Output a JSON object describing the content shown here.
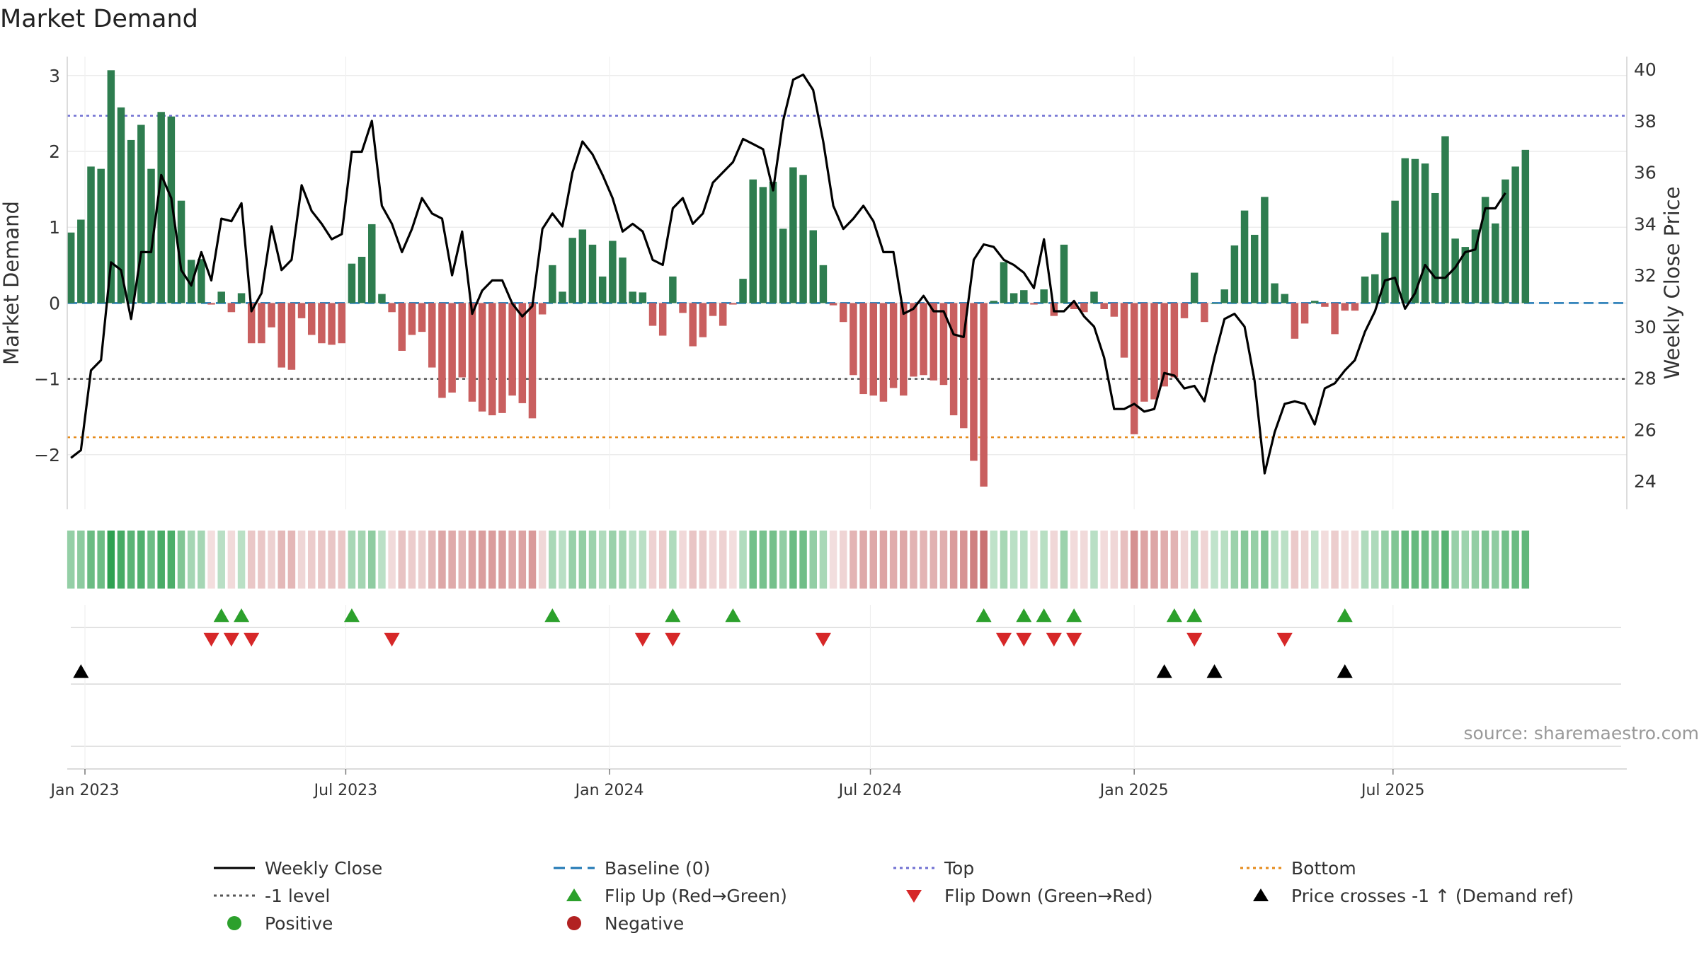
{
  "chart_data": {
    "type": "bar+line",
    "title": "Market Demand",
    "ylabel_left": "Market Demand",
    "ylabel_right": "Weekly Close Price",
    "ylim_left": [
      -2.72,
      3.25
    ],
    "ylim_right": [
      22.9,
      40.5
    ],
    "yticks_left": [
      -2,
      -1,
      0,
      1,
      2,
      3
    ],
    "yticks_left_labels": [
      "−2",
      "−1",
      "0",
      "1",
      "2",
      "3"
    ],
    "yticks_right": [
      24,
      26,
      28,
      30,
      32,
      34,
      36,
      38,
      40
    ],
    "x_start_week_offset": -1.4,
    "week_count": 142,
    "x_ticks": [
      {
        "label": "Jan 2023",
        "week": 0
      },
      {
        "label": "Jul 2023",
        "week": 26
      },
      {
        "label": "Jan 2024",
        "week": 52.3
      },
      {
        "label": "Jul 2024",
        "week": 78.3
      },
      {
        "label": "Jan 2025",
        "week": 104.6
      },
      {
        "label": "Jul 2025",
        "week": 130.4
      }
    ],
    "reference_lines": {
      "baseline": 0,
      "top": 2.47,
      "minus_one": -1,
      "bottom": -1.77
    },
    "demand": [
      0.93,
      1.1,
      1.8,
      1.77,
      3.07,
      2.58,
      2.15,
      2.35,
      1.77,
      2.52,
      2.46,
      1.35,
      0.57,
      0.58,
      -0.02,
      0.15,
      -0.12,
      0.13,
      -0.53,
      -0.53,
      -0.32,
      -0.85,
      -0.88,
      -0.2,
      -0.42,
      -0.53,
      -0.55,
      -0.53,
      0.52,
      0.61,
      1.04,
      0.12,
      -0.12,
      -0.63,
      -0.42,
      -0.38,
      -0.85,
      -1.25,
      -1.18,
      -0.98,
      -1.3,
      -1.43,
      -1.48,
      -1.45,
      -1.22,
      -1.32,
      -1.52,
      -0.15,
      0.5,
      0.15,
      0.86,
      0.97,
      0.77,
      0.35,
      0.82,
      0.6,
      0.15,
      0.14,
      -0.3,
      -0.43,
      0.35,
      -0.13,
      -0.57,
      -0.45,
      -0.17,
      -0.3,
      -0.02,
      0.32,
      1.63,
      1.53,
      1.6,
      0.98,
      1.79,
      1.69,
      0.96,
      0.5,
      -0.03,
      -0.25,
      -0.95,
      -1.2,
      -1.22,
      -1.3,
      -1.12,
      -1.22,
      -0.97,
      -0.95,
      -1.02,
      -1.08,
      -1.48,
      -1.65,
      -2.08,
      -2.42,
      0.03,
      0.54,
      0.13,
      0.17,
      -0.02,
      0.18,
      -0.17,
      0.77,
      -0.08,
      -0.12,
      0.15,
      -0.08,
      -0.18,
      -0.72,
      -1.73,
      -1.3,
      -1.27,
      -1.1,
      -0.98,
      -0.2,
      0.4,
      -0.25,
      0.0,
      0.18,
      0.76,
      1.22,
      0.9,
      1.4,
      0.26,
      0.12,
      -0.47,
      -0.27,
      0.03,
      -0.05,
      -0.41,
      -0.1,
      -0.1,
      0.35,
      0.38,
      0.93,
      1.35,
      1.91,
      1.9,
      1.84,
      1.45,
      2.2,
      0.85,
      0.74,
      0.97,
      1.4,
      1.05,
      1.63,
      1.8,
      2.02
    ],
    "close": [
      24.9,
      25.2,
      28.3,
      28.7,
      32.5,
      32.2,
      30.3,
      32.9,
      32.9,
      35.9,
      35.0,
      32.2,
      31.6,
      32.9,
      31.8,
      34.2,
      34.1,
      34.8,
      30.6,
      31.3,
      33.9,
      32.2,
      32.6,
      35.5,
      34.5,
      34.0,
      33.4,
      33.6,
      36.8,
      36.8,
      38.0,
      34.7,
      34.0,
      32.9,
      33.8,
      35.0,
      34.4,
      34.2,
      32.0,
      33.7,
      30.5,
      31.4,
      31.8,
      31.8,
      30.9,
      30.4,
      30.8,
      33.8,
      34.4,
      33.9,
      36.0,
      37.2,
      36.7,
      35.9,
      35.0,
      33.7,
      34.0,
      33.7,
      32.6,
      32.4,
      34.6,
      35.0,
      34.0,
      34.4,
      35.6,
      36.0,
      36.4,
      37.3,
      37.1,
      36.9,
      35.3,
      38.0,
      39.6,
      39.8,
      39.2,
      37.2,
      34.7,
      33.8,
      34.2,
      34.7,
      34.1,
      32.9,
      32.9,
      30.5,
      30.7,
      31.2,
      30.6,
      30.6,
      29.7,
      29.6,
      32.6,
      33.2,
      33.1,
      32.6,
      32.4,
      32.1,
      31.5,
      33.4,
      30.6,
      30.6,
      31.0,
      30.4,
      30.0,
      28.8,
      26.8,
      26.8,
      27.0,
      26.7,
      26.8,
      28.2,
      28.1,
      27.6,
      27.7,
      27.1,
      28.8,
      30.3,
      30.5,
      30.0,
      27.9,
      24.3,
      25.9,
      27.0,
      27.1,
      27.0,
      26.2,
      27.6,
      27.8,
      28.3,
      28.7,
      29.8,
      30.6,
      31.8,
      31.9,
      30.7,
      31.3,
      32.4,
      31.9,
      31.9,
      32.3,
      32.9,
      33.0,
      34.6,
      34.6,
      35.2
    ],
    "flip_up_weeks": [
      15,
      17,
      28,
      48,
      60,
      66,
      91,
      95,
      97,
      100,
      110,
      112,
      127
    ],
    "flip_down_weeks": [
      14,
      16,
      18,
      32,
      57,
      60,
      75,
      93,
      95,
      98,
      100,
      112,
      121
    ],
    "price_cross_weeks": [
      1,
      109,
      114,
      127
    ],
    "legend": [
      {
        "label": "Weekly Close",
        "kind": "line",
        "color": "#000000"
      },
      {
        "label": "Baseline (0)",
        "kind": "dash-long",
        "color": "#1f77b4"
      },
      {
        "label": "Top",
        "kind": "dot",
        "color": "#6f6fd2"
      },
      {
        "label": "Bottom",
        "kind": "dot",
        "color": "#e68a1a"
      },
      {
        "label": "-1 level",
        "kind": "dot",
        "color": "#555555"
      },
      {
        "label": "Flip Up (Red→Green)",
        "kind": "tri-up",
        "color": "#2ca02c"
      },
      {
        "label": "Flip Down (Green→Red)",
        "kind": "tri-down",
        "color": "#d62728"
      },
      {
        "label": "Price crosses -1 ↑ (Demand ref)",
        "kind": "tri-up",
        "color": "#000000"
      },
      {
        "label": "Positive",
        "kind": "circle",
        "color": "#2ca02c"
      },
      {
        "label": "Negative",
        "kind": "circle",
        "color": "#b22222"
      }
    ],
    "source": "source: sharemaestro.com"
  },
  "colors": {
    "positive_bar": "#2e7d4f",
    "negative_bar": "#c95f5f",
    "line": "#000000",
    "baseline": "#1f77b4",
    "top": "#6f6fd2",
    "bottom": "#e68a1a",
    "minus_one": "#555555",
    "grid": "#e6e6e6"
  }
}
